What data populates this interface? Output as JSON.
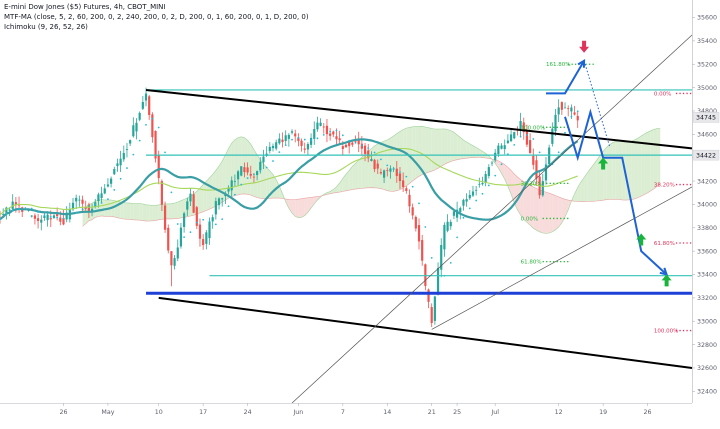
{
  "header": {
    "title": "E-mini Dow Jones ($5) Futures, 4h, CBOT_MINI",
    "indicator_1": "MTF-MA (close, 5, 2, 60, 200, 0, 2, 240, 200, 0, 2, D, 200, 0, 1, 60, 200, 0, 1, D, 200, 0)",
    "indicator_2": "Ichimoku (9, 26, 52, 26)"
  },
  "chart_data": {
    "type": "candlestick",
    "title": "E-mini Dow Jones ($5) Futures, 4h, CBOT_MINI",
    "ylim": [
      32300,
      35750
    ],
    "xlim": [
      -10,
      99
    ],
    "y_ticks": [
      32400,
      32600,
      32800,
      33000,
      33200,
      33400,
      33600,
      33800,
      34000,
      34200,
      34400,
      34600,
      34800,
      35000,
      35200,
      35400,
      35600
    ],
    "x_ticks": [
      {
        "label": "26",
        "x": 0
      },
      {
        "label": "May",
        "x": 7
      },
      {
        "label": "10",
        "x": 15
      },
      {
        "label": "17",
        "x": 22
      },
      {
        "label": "24",
        "x": 29
      },
      {
        "label": "Jun",
        "x": 37
      },
      {
        "label": "7",
        "x": 44
      },
      {
        "label": "14",
        "x": 51
      },
      {
        "label": "21",
        "x": 58
      },
      {
        "label": "25",
        "x": 62
      },
      {
        "label": "Jul",
        "x": 68
      },
      {
        "label": "12",
        "x": 78
      },
      {
        "label": "19",
        "x": 85
      },
      {
        "label": "26",
        "x": 92
      }
    ],
    "price_labels": [
      {
        "value": 34745,
        "text": "34745",
        "color": "#5d606b"
      },
      {
        "value": 34422,
        "text": "34422",
        "color": "#5d606b"
      }
    ],
    "candles_day_range": [
      -10,
      81
    ],
    "price_path": [
      [
        -10,
        33900
      ],
      [
        -8,
        34000
      ],
      [
        -6,
        33950
      ],
      [
        -4,
        33850
      ],
      [
        -2,
        33900
      ],
      [
        0,
        33850
      ],
      [
        2,
        34050
      ],
      [
        4,
        33950
      ],
      [
        6,
        34100
      ],
      [
        8,
        34300
      ],
      [
        10,
        34500
      ],
      [
        12,
        34800
      ],
      [
        13,
        34950
      ],
      [
        14,
        34600
      ],
      [
        15,
        34200
      ],
      [
        16,
        33800
      ],
      [
        17,
        33450
      ],
      [
        18,
        33650
      ],
      [
        19,
        33950
      ],
      [
        20,
        34100
      ],
      [
        21,
        33800
      ],
      [
        22,
        33650
      ],
      [
        24,
        34000
      ],
      [
        26,
        34150
      ],
      [
        28,
        34300
      ],
      [
        30,
        34250
      ],
      [
        32,
        34450
      ],
      [
        34,
        34550
      ],
      [
        36,
        34600
      ],
      [
        38,
        34450
      ],
      [
        40,
        34700
      ],
      [
        42,
        34600
      ],
      [
        44,
        34500
      ],
      [
        46,
        34550
      ],
      [
        48,
        34400
      ],
      [
        50,
        34250
      ],
      [
        52,
        34300
      ],
      [
        54,
        34100
      ],
      [
        56,
        33700
      ],
      [
        57,
        33300
      ],
      [
        58,
        33000
      ],
      [
        59,
        33450
      ],
      [
        60,
        33800
      ],
      [
        62,
        33950
      ],
      [
        64,
        34100
      ],
      [
        66,
        34200
      ],
      [
        68,
        34450
      ],
      [
        70,
        34550
      ],
      [
        72,
        34700
      ],
      [
        74,
        34350
      ],
      [
        75,
        34100
      ],
      [
        76,
        34350
      ],
      [
        77,
        34650
      ],
      [
        78,
        34850
      ],
      [
        80,
        34800
      ],
      [
        81,
        34745
      ]
    ],
    "wick_extremes": [
      {
        "x": 13,
        "high": 35000
      },
      {
        "x": 17,
        "low": 33300
      },
      {
        "x": 58,
        "low": 32950
      },
      {
        "x": 78,
        "high": 34900
      }
    ],
    "trend_lines": [
      {
        "name": "upper-channel",
        "color": "#000000",
        "width": 2,
        "points": [
          [
            13,
            34980
          ],
          [
            99,
            34480
          ]
        ]
      },
      {
        "name": "lower-channel",
        "color": "#000000",
        "width": 2,
        "points": [
          [
            15,
            33200
          ],
          [
            99,
            32600
          ]
        ]
      },
      {
        "name": "trend-1",
        "color": "#555555",
        "width": 0.7,
        "points": [
          [
            36,
            32300
          ],
          [
            99,
            35450
          ]
        ]
      },
      {
        "name": "trend-2",
        "color": "#555555",
        "width": 0.7,
        "points": [
          [
            58,
            32930
          ],
          [
            99,
            34150
          ]
        ]
      }
    ],
    "horizontal_lines": [
      {
        "name": "resistance-35000",
        "value": 34980,
        "from": 13,
        "to": 99,
        "color": "#34c2b8",
        "width": 1.2
      },
      {
        "name": "level-34422",
        "value": 34422,
        "from": 13,
        "to": 99,
        "color": "#34c2b8",
        "width": 1.2
      },
      {
        "name": "level-33390",
        "value": 33390,
        "from": 23,
        "to": 99,
        "color": "#34c2b8",
        "width": 1.2
      },
      {
        "name": "support-33240",
        "value": 33240,
        "from": 13,
        "to": 99,
        "color": "#1e40d7",
        "width": 3
      }
    ],
    "fib_levels": [
      {
        "label": "161.80%",
        "value": 35200,
        "x": 76,
        "color": "#2bb53a"
      },
      {
        "label": "100.00%",
        "value": 34660,
        "x": 72,
        "color": "#2bb53a"
      },
      {
        "label": "38.20%",
        "value": 34180,
        "x": 72,
        "color": "#2bb53a"
      },
      {
        "label": "0.00%",
        "value": 33880,
        "x": 72,
        "color": "#2bb53a"
      },
      {
        "label": "61.80%",
        "value": 33510,
        "x": 72,
        "color": "#2bb53a"
      },
      {
        "label": "0.00%",
        "value": 34950,
        "x": 93,
        "color": "#e0335b"
      },
      {
        "label": "38.20%",
        "value": 34170,
        "x": 93,
        "color": "#e0335b"
      },
      {
        "label": "61.80%",
        "value": 33670,
        "x": 93,
        "color": "#e0335b"
      },
      {
        "label": "100.00%",
        "value": 32920,
        "x": 93,
        "color": "#e0335b"
      }
    ],
    "projection_paths": [
      {
        "name": "projection-up",
        "style": "solid",
        "points": [
          [
            76,
            34950
          ],
          [
            79,
            34950
          ],
          [
            82,
            35230
          ]
        ]
      },
      {
        "name": "projection-up-dotted",
        "style": "dotted",
        "points": [
          [
            82,
            35230
          ],
          [
            86,
            34500
          ]
        ]
      },
      {
        "name": "projection-main",
        "style": "solid",
        "points": [
          [
            79,
            34750
          ],
          [
            81,
            34400
          ],
          [
            83,
            34790
          ],
          [
            85,
            34400
          ],
          [
            88,
            34400
          ],
          [
            91,
            33600
          ],
          [
            95,
            33400
          ]
        ]
      }
    ],
    "arrows": [
      {
        "name": "arrow-down-top",
        "direction": "down",
        "x": 82,
        "value": 35350,
        "color": "#e0335b"
      },
      {
        "name": "arrow-up-1",
        "direction": "up",
        "x": 85,
        "value": 34350,
        "color": "#19b43c"
      },
      {
        "name": "arrow-up-2",
        "direction": "up",
        "x": 91,
        "value": 33700,
        "color": "#19b43c"
      },
      {
        "name": "arrow-up-3",
        "direction": "up",
        "x": 95,
        "value": 33350,
        "color": "#19b43c"
      },
      {
        "name": "arrow-up-4",
        "direction": "up",
        "x": 100,
        "value": 32500,
        "color": "#19b43c"
      }
    ],
    "grid": false,
    "legend": "top-left",
    "colors": {
      "up_candle": "#26a69a",
      "down_candle": "#ef5350",
      "kumo_bull": "#cfe8c4",
      "kumo_bear": "#f5cfcf",
      "ma_fast": "#3a9ea5",
      "ma_slow": "#a6d85a",
      "projection": "#1e63d6",
      "dots_cyan": "#2ab8d8"
    }
  }
}
